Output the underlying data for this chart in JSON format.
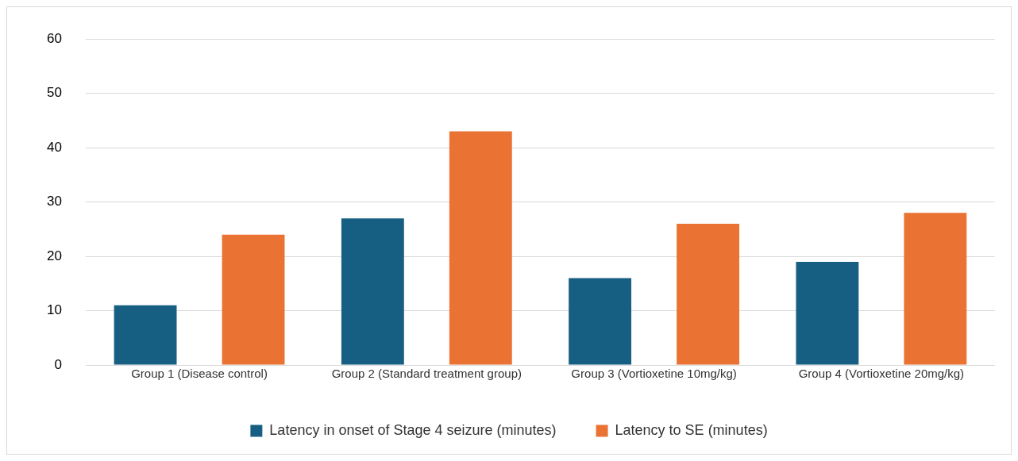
{
  "chart_data": {
    "type": "bar",
    "categories": [
      "Group 1 (Disease control)",
      "Group 2 (Standard treatment group)",
      "Group 3 (Vortioxetine 10mg/kg)",
      "Group 4 (Vortioxetine 20mg/kg)"
    ],
    "series": [
      {
        "name": "Latency in onset of Stage 4 seizure (minutes)",
        "color": "#175f82",
        "values": [
          11,
          27,
          16,
          19
        ]
      },
      {
        "name": "Latency to SE (minutes)",
        "color": "#ea7334",
        "values": [
          24,
          43,
          26,
          28
        ]
      }
    ],
    "ylim": [
      0,
      60
    ],
    "yticks": [
      0,
      10,
      20,
      30,
      40,
      50,
      60
    ],
    "grid": "y",
    "legend": "bottom"
  }
}
